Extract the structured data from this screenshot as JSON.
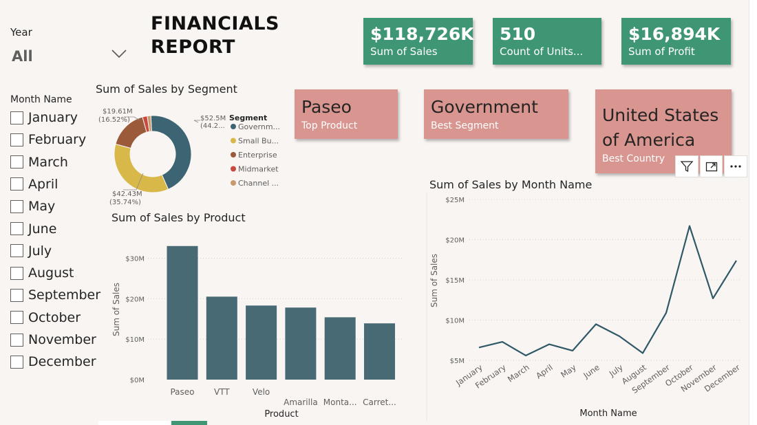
{
  "filters": {
    "year_label": "Year",
    "year_value": "All",
    "month_title": "Month Name",
    "months": [
      "January",
      "February",
      "March",
      "April",
      "May",
      "June",
      "July",
      "August",
      "September",
      "October",
      "November",
      "December"
    ]
  },
  "report": {
    "title_line1": "FINANCIALS",
    "title_line2": "REPORT"
  },
  "kpis": [
    {
      "value": "$118,726K",
      "label": "Sum of Sales"
    },
    {
      "value": "510",
      "label": "Count of Units..."
    },
    {
      "value": "$16,894K",
      "label": "Sum of Profit"
    }
  ],
  "cards": [
    {
      "value": "Paseo",
      "label": "Top Product"
    },
    {
      "value": "Government",
      "label": "Best Segment"
    },
    {
      "value_line1": "United States",
      "value_line2": "of America",
      "label": "Best Country"
    }
  ],
  "toolbar": {
    "icons": [
      "filter-icon",
      "focus-mode-icon",
      "more-options-icon"
    ]
  },
  "colors": {
    "kpi": "#3f9675",
    "card": "#d99690",
    "bar": "#476a75",
    "line": "#2e5866",
    "donut": [
      "#3d6472",
      "#d9b84a",
      "#9b5a3a",
      "#c9493f",
      "#c89a6e"
    ]
  },
  "segment_chart": {
    "title": "Sum of Sales by Segment",
    "legend_title": "Segment",
    "legend_labels": [
      "Governm...",
      "Small Bu...",
      "Enterprise",
      "Midmarket",
      "Channel ..."
    ],
    "data_labels": [
      {
        "value": "$52.5M",
        "pct": "(44.2...",
        "anchor": "right"
      },
      {
        "value": "$42.43M",
        "pct": "(35.74%)",
        "anchor": "left"
      },
      {
        "value": "$19.61M",
        "pct": "(16.52%)",
        "anchor": "left"
      }
    ]
  },
  "product_chart": {
    "title": "Sum of Sales by Product",
    "xlabel": "Product",
    "ylabel": "Sum of Sales"
  },
  "month_chart": {
    "title": "Sum of Sales by Month Name",
    "xlabel": "Month Name",
    "ylabel": "Sum of Sales"
  },
  "chart_data": [
    {
      "type": "pie",
      "title": "Sum of Sales by Segment",
      "categories": [
        "Government",
        "Small Business",
        "Enterprise",
        "Midmarket",
        "Channel Partners"
      ],
      "values": [
        52.5,
        42.43,
        19.61,
        2.38,
        1.8
      ],
      "unit": "$M",
      "donut": true,
      "legend": "right"
    },
    {
      "type": "bar",
      "title": "Sum of Sales by Product",
      "categories": [
        "Paseo",
        "VTT",
        "Velo",
        "Amarilla",
        "Monta...",
        "Carret..."
      ],
      "values": [
        33,
        20.5,
        18.3,
        17.8,
        15.4,
        13.9
      ],
      "ylim": [
        0,
        35
      ],
      "yticks": [
        0,
        10,
        20,
        30
      ],
      "ytick_labels": [
        "$0M",
        "$10M",
        "$20M",
        "$30M"
      ],
      "xlabel": "Product",
      "ylabel": "Sum of Sales",
      "grid": true
    },
    {
      "type": "line",
      "title": "Sum of Sales by Month Name",
      "categories": [
        "January",
        "February",
        "March",
        "April",
        "May",
        "June",
        "July",
        "August",
        "September",
        "October",
        "November",
        "December"
      ],
      "values": [
        6.6,
        7.3,
        5.6,
        7.0,
        6.2,
        9.5,
        8.0,
        5.9,
        10.9,
        21.7,
        12.7,
        17.4
      ],
      "ylim": [
        4,
        25
      ],
      "yticks": [
        5,
        10,
        15,
        20,
        25
      ],
      "ytick_labels": [
        "$5M",
        "$10M",
        "$15M",
        "$20M",
        "$25M"
      ],
      "xlabel": "Month Name",
      "ylabel": "Sum of Sales",
      "grid": true
    }
  ]
}
